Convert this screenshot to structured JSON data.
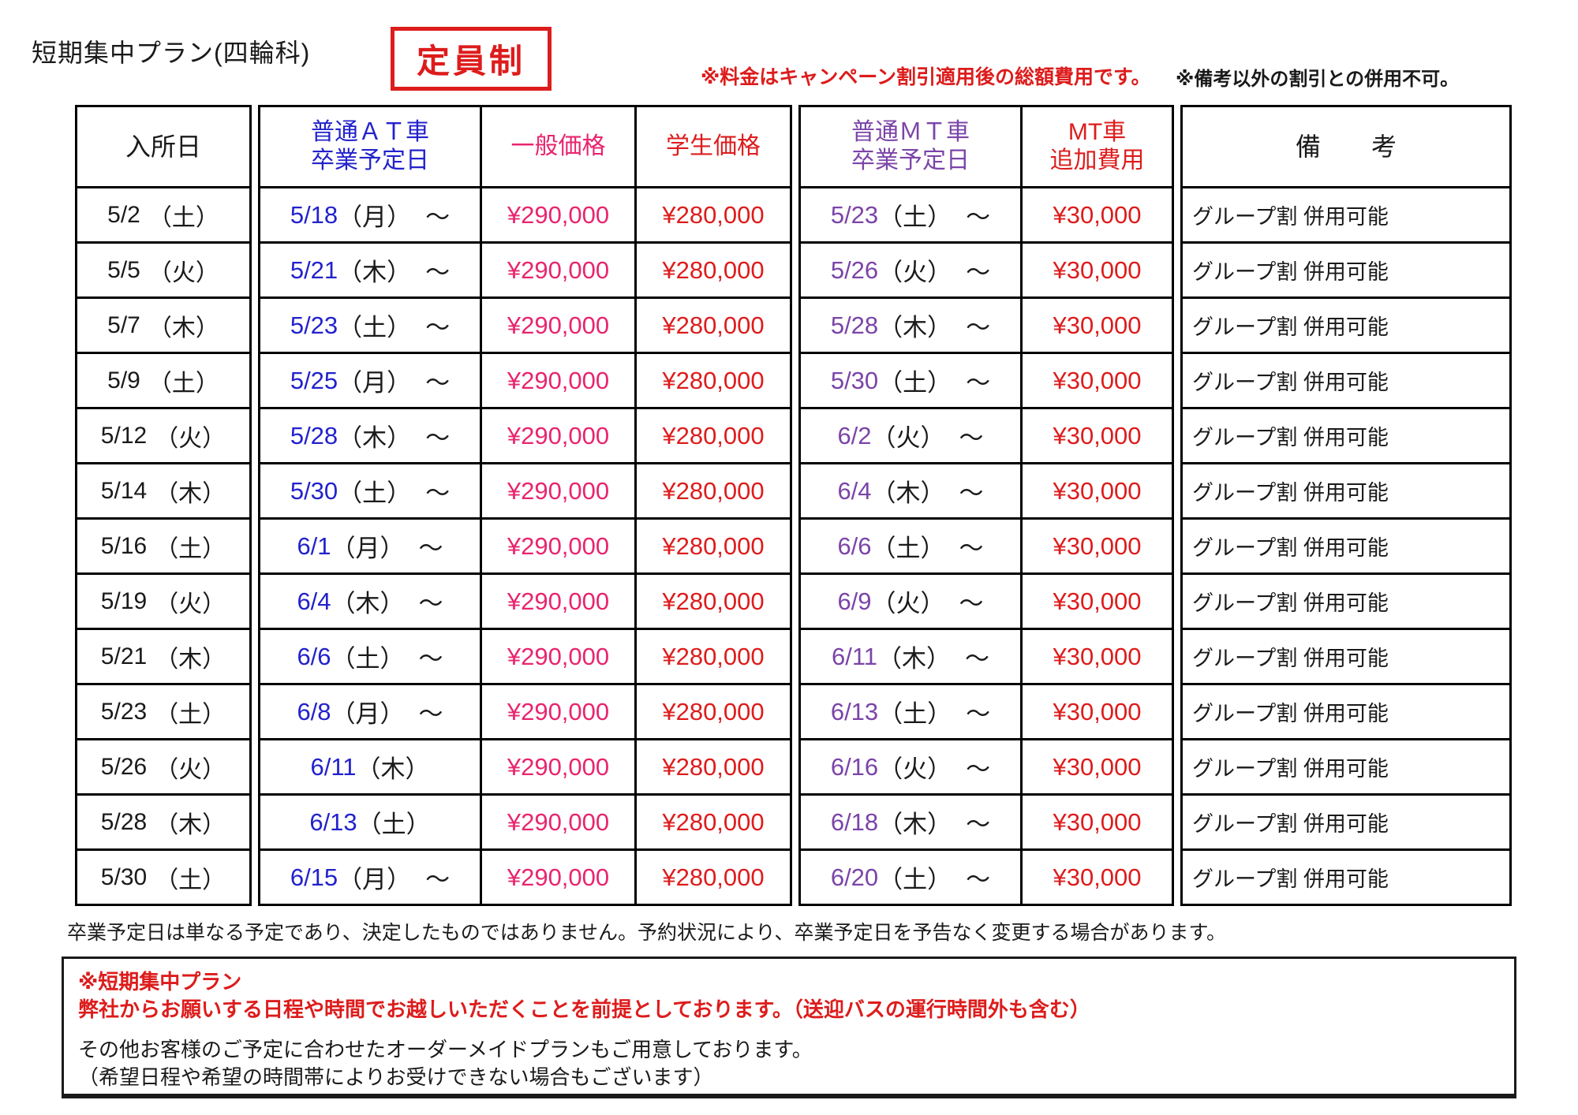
{
  "page": {
    "title": "短期集中プラン(四輪科)",
    "badge": "定員制",
    "note_fee": "※料金はキャンペーン割引適用後の総額費用です。",
    "note_discount": "※備考以外の割引との併用不可。"
  },
  "colors": {
    "accent_red": "#dd1c1c",
    "price_pink": "#e8256e",
    "at_blue": "#2222cc",
    "mt_purple": "#7b44a8",
    "text_black": "#1a1a1a"
  },
  "table": {
    "headers": {
      "entry": "入所日",
      "at_line1": "普通ＡＴ車",
      "at_line2": "卒業予定日",
      "general_price": "一般価格",
      "student_price": "学生価格",
      "mt_line1": "普通ＭＴ車",
      "mt_line2": "卒業予定日",
      "mt_fee_line1": "MT車",
      "mt_fee_line2": "追加費用",
      "remarks": "備　　考"
    },
    "rows": [
      {
        "entry_date": "5/2",
        "entry_day": "（土）",
        "at_date": "5/18",
        "at_day": "（月）",
        "at_tilde": "～",
        "general": "¥290,000",
        "student": "¥280,000",
        "mt_date": "5/23",
        "mt_day": "（土）",
        "mt_tilde": "～",
        "fee": "¥30,000",
        "remark": "グループ割 併用可能"
      },
      {
        "entry_date": "5/5",
        "entry_day": "（火）",
        "at_date": "5/21",
        "at_day": "（木）",
        "at_tilde": "～",
        "general": "¥290,000",
        "student": "¥280,000",
        "mt_date": "5/26",
        "mt_day": "（火）",
        "mt_tilde": "～",
        "fee": "¥30,000",
        "remark": "グループ割 併用可能"
      },
      {
        "entry_date": "5/7",
        "entry_day": "（木）",
        "at_date": "5/23",
        "at_day": "（土）",
        "at_tilde": "～",
        "general": "¥290,000",
        "student": "¥280,000",
        "mt_date": "5/28",
        "mt_day": "（木）",
        "mt_tilde": "～",
        "fee": "¥30,000",
        "remark": "グループ割 併用可能"
      },
      {
        "entry_date": "5/9",
        "entry_day": "（土）",
        "at_date": "5/25",
        "at_day": "（月）",
        "at_tilde": "～",
        "general": "¥290,000",
        "student": "¥280,000",
        "mt_date": "5/30",
        "mt_day": "（土）",
        "mt_tilde": "～",
        "fee": "¥30,000",
        "remark": "グループ割 併用可能"
      },
      {
        "entry_date": "5/12",
        "entry_day": "（火）",
        "at_date": "5/28",
        "at_day": "（木）",
        "at_tilde": "～",
        "general": "¥290,000",
        "student": "¥280,000",
        "mt_date": "6/2",
        "mt_day": "（火）",
        "mt_tilde": "～",
        "fee": "¥30,000",
        "remark": "グループ割 併用可能"
      },
      {
        "entry_date": "5/14",
        "entry_day": "（木）",
        "at_date": "5/30",
        "at_day": "（土）",
        "at_tilde": "～",
        "general": "¥290,000",
        "student": "¥280,000",
        "mt_date": "6/4",
        "mt_day": "（木）",
        "mt_tilde": "～",
        "fee": "¥30,000",
        "remark": "グループ割 併用可能"
      },
      {
        "entry_date": "5/16",
        "entry_day": "（土）",
        "at_date": "6/1",
        "at_day": "（月）",
        "at_tilde": "～",
        "general": "¥290,000",
        "student": "¥280,000",
        "mt_date": "6/6",
        "mt_day": "（土）",
        "mt_tilde": "～",
        "fee": "¥30,000",
        "remark": "グループ割 併用可能"
      },
      {
        "entry_date": "5/19",
        "entry_day": "（火）",
        "at_date": "6/4",
        "at_day": "（木）",
        "at_tilde": "～",
        "general": "¥290,000",
        "student": "¥280,000",
        "mt_date": "6/9",
        "mt_day": "（火）",
        "mt_tilde": "～",
        "fee": "¥30,000",
        "remark": "グループ割 併用可能"
      },
      {
        "entry_date": "5/21",
        "entry_day": "（木）",
        "at_date": "6/6",
        "at_day": "（土）",
        "at_tilde": "～",
        "general": "¥290,000",
        "student": "¥280,000",
        "mt_date": "6/11",
        "mt_day": "（木）",
        "mt_tilde": "～",
        "fee": "¥30,000",
        "remark": "グループ割 併用可能"
      },
      {
        "entry_date": "5/23",
        "entry_day": "（土）",
        "at_date": "6/8",
        "at_day": "（月）",
        "at_tilde": "～",
        "general": "¥290,000",
        "student": "¥280,000",
        "mt_date": "6/13",
        "mt_day": "（土）",
        "mt_tilde": "～",
        "fee": "¥30,000",
        "remark": "グループ割 併用可能"
      },
      {
        "entry_date": "5/26",
        "entry_day": "（火）",
        "at_date": "6/11",
        "at_day": "（木）",
        "at_tilde": "",
        "general": "¥290,000",
        "student": "¥280,000",
        "mt_date": "6/16",
        "mt_day": "（火）",
        "mt_tilde": "～",
        "fee": "¥30,000",
        "remark": "グループ割 併用可能"
      },
      {
        "entry_date": "5/28",
        "entry_day": "（木）",
        "at_date": "6/13",
        "at_day": "（土）",
        "at_tilde": "",
        "general": "¥290,000",
        "student": "¥280,000",
        "mt_date": "6/18",
        "mt_day": "（木）",
        "mt_tilde": "～",
        "fee": "¥30,000",
        "remark": "グループ割 併用可能"
      },
      {
        "entry_date": "5/30",
        "entry_day": "（土）",
        "at_date": "6/15",
        "at_day": "（月）",
        "at_tilde": "～",
        "general": "¥290,000",
        "student": "¥280,000",
        "mt_date": "6/20",
        "mt_day": "（土）",
        "mt_tilde": "～",
        "fee": "¥30,000",
        "remark": "グループ割 併用可能"
      }
    ]
  },
  "footer": {
    "note": "卒業予定日は単なる予定であり、決定したものではありません。予約状況により、卒業予定日を予告なく変更する場合があります。",
    "box_red_line1": "※短期集中プラン",
    "box_red_line2": "弊社からお願いする日程や時間でお越しいただくことを前提としております。（送迎バスの運行時間外も含む）",
    "box_black_line1": "その他お客様のご予定に合わせたオーダーメイドプランもご用意しております。",
    "box_black_line2": "（希望日程や希望の時間帯によりお受けできない場合もございます）"
  }
}
